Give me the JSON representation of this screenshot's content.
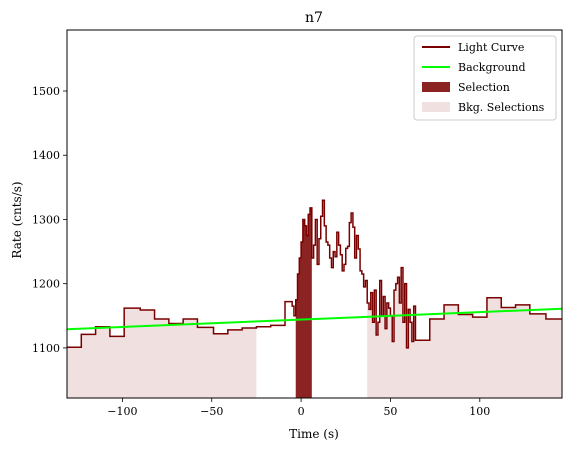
{
  "chart_data": {
    "type": "line",
    "title": "n7",
    "xlabel": "Time (s)",
    "ylabel": "Rate (cnts/s)",
    "xlim": [
      -131,
      146
    ],
    "ylim": [
      1022,
      1595
    ],
    "xticks": [
      -100,
      -50,
      0,
      50,
      100
    ],
    "yticks": [
      1100,
      1200,
      1300,
      1400,
      1500
    ],
    "grid": false,
    "legend_position": "top-right",
    "colors": {
      "light_curve": "#7a0000",
      "background": "#00ff00",
      "selection": "#8b2323",
      "bkg_selection": "#f0e0e0"
    },
    "legend": [
      {
        "label": "Light Curve",
        "kind": "line",
        "color": "#7a0000"
      },
      {
        "label": "Background",
        "kind": "line",
        "color": "#00ff00"
      },
      {
        "label": "Selection",
        "kind": "patch",
        "color": "#8b2323"
      },
      {
        "label": "Bkg. Selections",
        "kind": "patch",
        "color": "#f0e0e0"
      }
    ],
    "background_fit": {
      "x": [
        -131,
        146
      ],
      "y": [
        1129,
        1161
      ]
    },
    "bkg_selections": [
      [
        -131,
        -25
      ],
      [
        37,
        146
      ]
    ],
    "selection": [
      -3,
      6
    ],
    "light_curve": {
      "x": [
        -131,
        -123,
        -115,
        -107,
        -99,
        -90,
        -82,
        -74,
        -66,
        -58,
        -49,
        -41,
        -33,
        -25,
        -17,
        -9,
        -5,
        -4,
        -3,
        -2,
        -1,
        0,
        1,
        2,
        3,
        4,
        5,
        6,
        7,
        8,
        9,
        10,
        11,
        12,
        13,
        14,
        15,
        16,
        17,
        18,
        19,
        20,
        21,
        22,
        23,
        24,
        25,
        26,
        27,
        28,
        29,
        30,
        31,
        32,
        33,
        34,
        35,
        36,
        37,
        38,
        39,
        40,
        41,
        42,
        43,
        44,
        45,
        46,
        47,
        48,
        49,
        50,
        51,
        52,
        53,
        54,
        55,
        56,
        57,
        58,
        59,
        60,
        61,
        62,
        63,
        64,
        72,
        80,
        88,
        96,
        104,
        112,
        120,
        128,
        137,
        146
      ],
      "y": [
        1101,
        1121,
        1133,
        1118,
        1162,
        1159,
        1145,
        1138,
        1145,
        1132,
        1122,
        1128,
        1131,
        1133,
        1135,
        1172,
        1165,
        1150,
        1175,
        1215,
        1240,
        1265,
        1300,
        1290,
        1275,
        1308,
        1318,
        1240,
        1260,
        1300,
        1230,
        1270,
        1305,
        1330,
        1290,
        1265,
        1260,
        1240,
        1225,
        1250,
        1242,
        1280,
        1260,
        1245,
        1220,
        1230,
        1255,
        1258,
        1295,
        1310,
        1288,
        1240,
        1275,
        1254,
        1220,
        1215,
        1195,
        1205,
        1170,
        1160,
        1186,
        1140,
        1190,
        1120,
        1140,
        1205,
        1150,
        1180,
        1130,
        1170,
        1162,
        1150,
        1110,
        1190,
        1200,
        1210,
        1170,
        1225,
        1140,
        1200,
        1100,
        1160,
        1140,
        1110,
        1165,
        1112,
        1145,
        1167,
        1152,
        1148,
        1178,
        1163,
        1167,
        1153,
        1145,
        1145
      ]
    }
  }
}
